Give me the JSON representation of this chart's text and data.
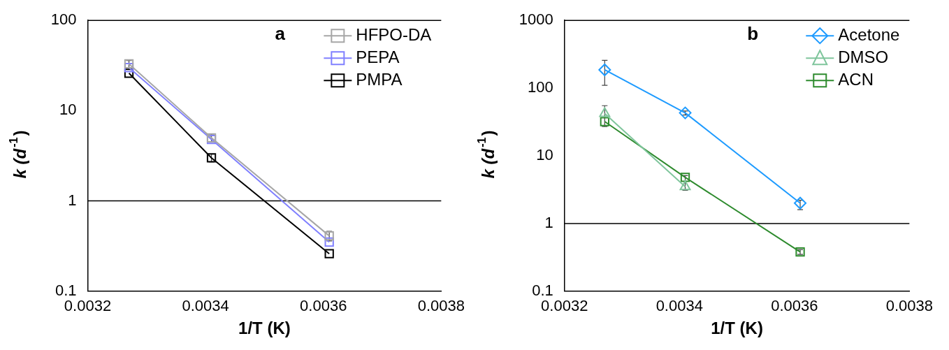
{
  "chart_data": [
    {
      "type": "line",
      "annotations": [
        "a"
      ],
      "xlabel": "1/T (K)",
      "ylabel": "k (d$^{-1}$)",
      "log": "y",
      "xlim": [
        0.0032,
        0.0038
      ],
      "xticks": [
        0.0032,
        0.0034,
        0.0036,
        0.0038
      ],
      "ylim": [
        0.1,
        100
      ],
      "yticks": [
        0.1,
        1,
        10,
        100
      ],
      "grid": false,
      "legend": "top right",
      "marker": "square",
      "ref_lines": [
        {
          "axis": "y",
          "value": 1
        }
      ],
      "series": [
        {
          "name": "HFPO-DA",
          "color": "#a6a6a6",
          "x": [
            0.00327,
            0.00341,
            0.00361
          ],
          "values": [
            33,
            5.0,
            0.41
          ],
          "errors": [
            3,
            0.5,
            0.05
          ]
        },
        {
          "name": "PEPA",
          "color": "#8080ff",
          "x": [
            0.00327,
            0.00341,
            0.00361
          ],
          "values": [
            30,
            4.8,
            0.35
          ]
        },
        {
          "name": "PMPA",
          "color": "#000000",
          "x": [
            0.00327,
            0.00341,
            0.00361
          ],
          "values": [
            26,
            3.0,
            0.26
          ],
          "errors": [
            null,
            0.3,
            null
          ]
        }
      ]
    },
    {
      "type": "line",
      "annotations": [
        "b"
      ],
      "xlabel": "1/T (K)",
      "ylabel": "k (d$^{-1}$)",
      "log": "y",
      "xlim": [
        0.0032,
        0.0038
      ],
      "xticks": [
        0.0032,
        0.0034,
        0.0036,
        0.0038
      ],
      "ylim": [
        0.1,
        1000
      ],
      "yticks": [
        0.1,
        1,
        10,
        100,
        1000
      ],
      "grid": false,
      "legend": "top right",
      "ref_lines": [
        {
          "axis": "y",
          "value": 1
        }
      ],
      "series": [
        {
          "name": "Acetone",
          "color": "#1e9bff",
          "marker": "diamond",
          "x": [
            0.00327,
            0.00341,
            0.00361
          ],
          "values": [
            186,
            43,
            2.0
          ],
          "errors": [
            [
              110,
              257
            ],
            [
              40,
              46
            ],
            [
              1.6,
              2.2
            ]
          ]
        },
        {
          "name": "DMSO",
          "color": "#7fc59c",
          "marker": "triangle",
          "x": [
            0.00327,
            0.00341
          ],
          "values": [
            42,
            3.5
          ],
          "errors": [
            [
              27,
              55
            ],
            [
              3.1,
              5.1
            ]
          ]
        },
        {
          "name": "ACN",
          "color": "#2e8b2e",
          "marker": "square",
          "x": [
            0.00327,
            0.00341,
            0.00361
          ],
          "values": [
            32,
            4.8,
            0.38
          ],
          "errors": [
            null,
            null,
            [
              0.35,
              0.41
            ]
          ]
        }
      ]
    }
  ]
}
